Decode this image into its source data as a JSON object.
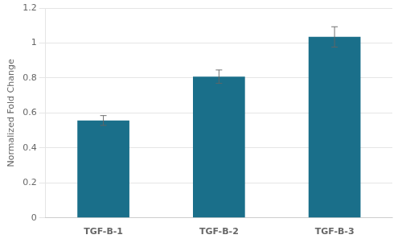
{
  "chart_data": {
    "type": "bar",
    "categories": [
      "TGF-B-1",
      "TGF-B-2",
      "TGF-B-3"
    ],
    "values": [
      0.557,
      0.808,
      1.035
    ],
    "errors": [
      0.028,
      0.038,
      0.058
    ],
    "color": "#1a6f8a",
    "ylabel": "Normalized Fold Change",
    "ylim": [
      0,
      1.2
    ],
    "yticks": [
      0,
      0.2,
      0.4,
      0.6,
      0.8,
      1,
      1.2
    ],
    "grid": true
  }
}
